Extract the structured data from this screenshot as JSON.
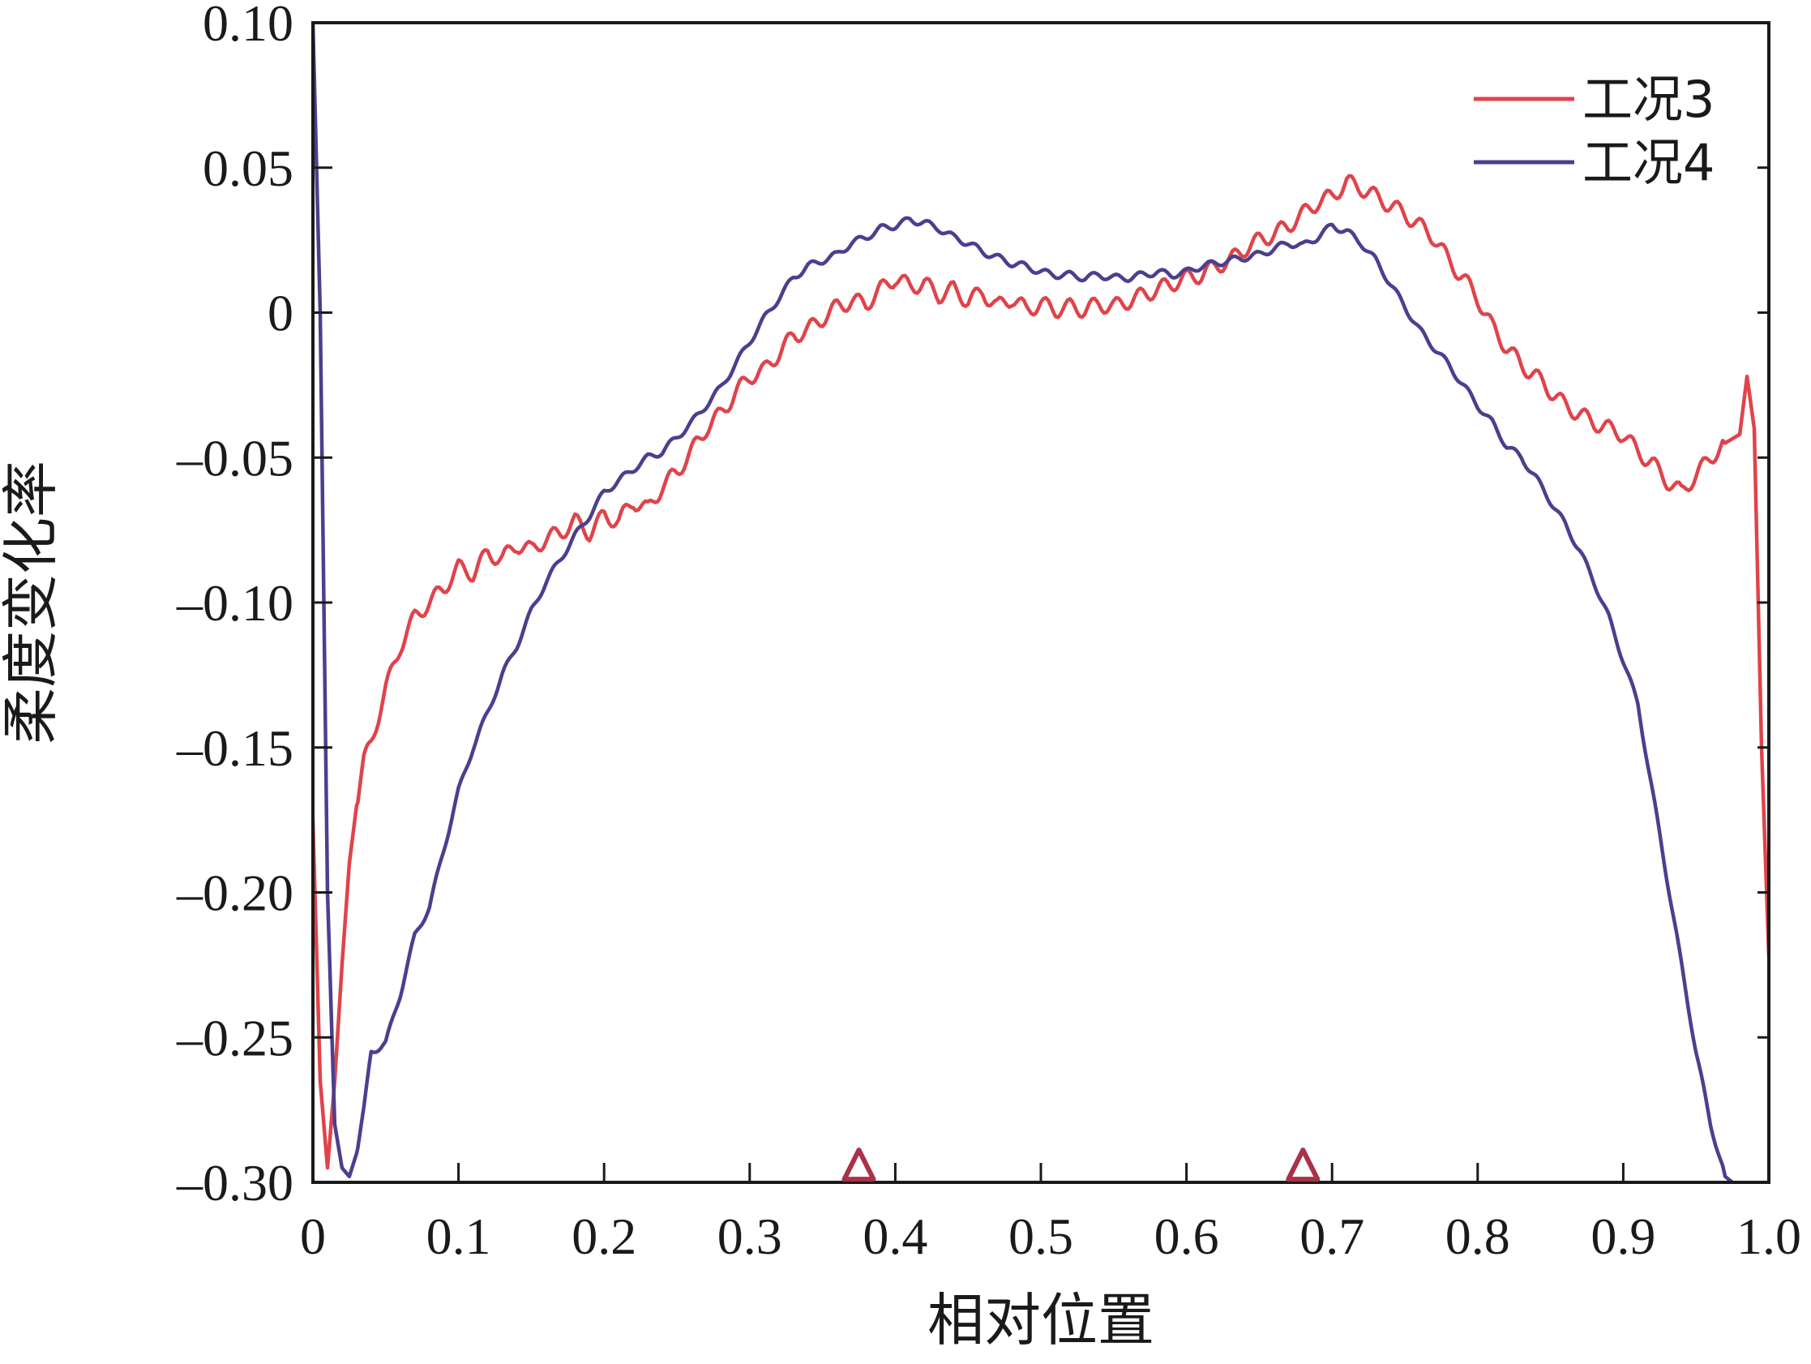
{
  "chart_data": {
    "type": "line",
    "xlabel": "相对位置",
    "ylabel": "柔度变化率",
    "xlim": [
      0,
      1.0
    ],
    "ylim": [
      -0.3,
      0.1
    ],
    "xticks": [
      0,
      0.1,
      0.2,
      0.3,
      0.4,
      0.5,
      0.6,
      0.7,
      0.8,
      0.9,
      1.0
    ],
    "xtick_labels": [
      "0",
      "0.1",
      "0.2",
      "0.3",
      "0.4",
      "0.5",
      "0.6",
      "0.7",
      "0.8",
      "0.9",
      "1.0"
    ],
    "yticks": [
      0.1,
      0.05,
      0,
      -0.05,
      -0.1,
      -0.15,
      -0.2,
      -0.25,
      -0.3
    ],
    "ytick_labels": [
      "0.10",
      "0.05",
      "0",
      "–0.05",
      "–0.10",
      "–0.15",
      "–0.20",
      "–0.25",
      "–0.30"
    ],
    "grid": false,
    "legend_position": "top-right",
    "markers": {
      "shape": "triangle",
      "color": "#a83248",
      "x": [
        0.375,
        0.68
      ],
      "y": -0.295
    },
    "series": [
      {
        "name": "工况3",
        "color": "#e0434a",
        "x": [
          0.0,
          0.005,
          0.01,
          0.015,
          0.02,
          0.025,
          0.03,
          0.035,
          0.04,
          0.05,
          0.06,
          0.07,
          0.08,
          0.09,
          0.1,
          0.11,
          0.12,
          0.13,
          0.14,
          0.15,
          0.16,
          0.17,
          0.18,
          0.19,
          0.2,
          0.21,
          0.22,
          0.23,
          0.24,
          0.25,
          0.26,
          0.27,
          0.28,
          0.29,
          0.3,
          0.31,
          0.32,
          0.33,
          0.34,
          0.35,
          0.36,
          0.37,
          0.38,
          0.39,
          0.4,
          0.41,
          0.42,
          0.43,
          0.44,
          0.45,
          0.46,
          0.47,
          0.48,
          0.49,
          0.5,
          0.51,
          0.52,
          0.53,
          0.54,
          0.55,
          0.56,
          0.57,
          0.58,
          0.59,
          0.6,
          0.61,
          0.62,
          0.63,
          0.64,
          0.65,
          0.66,
          0.67,
          0.68,
          0.69,
          0.7,
          0.71,
          0.72,
          0.73,
          0.74,
          0.75,
          0.76,
          0.77,
          0.78,
          0.79,
          0.8,
          0.81,
          0.82,
          0.83,
          0.84,
          0.85,
          0.86,
          0.87,
          0.88,
          0.89,
          0.9,
          0.91,
          0.92,
          0.93,
          0.94,
          0.95,
          0.96,
          0.97,
          0.98,
          0.985,
          0.99,
          0.995,
          1.0
        ],
        "values": [
          -0.175,
          -0.265,
          -0.295,
          -0.265,
          -0.225,
          -0.19,
          -0.17,
          -0.155,
          -0.148,
          -0.13,
          -0.115,
          -0.105,
          -0.1,
          -0.095,
          -0.088,
          -0.09,
          -0.083,
          -0.085,
          -0.08,
          -0.082,
          -0.078,
          -0.076,
          -0.072,
          -0.076,
          -0.07,
          -0.072,
          -0.065,
          -0.068,
          -0.06,
          -0.055,
          -0.048,
          -0.04,
          -0.035,
          -0.028,
          -0.022,
          -0.02,
          -0.014,
          -0.008,
          -0.006,
          -0.002,
          0.002,
          0.004,
          0.003,
          0.008,
          0.012,
          0.009,
          0.01,
          0.006,
          0.008,
          0.004,
          0.007,
          0.002,
          0.005,
          0.001,
          0.003,
          0.001,
          0.002,
          0.001,
          0.003,
          0.002,
          0.004,
          0.006,
          0.008,
          0.01,
          0.012,
          0.013,
          0.016,
          0.018,
          0.022,
          0.025,
          0.027,
          0.03,
          0.034,
          0.038,
          0.04,
          0.045,
          0.043,
          0.04,
          0.037,
          0.034,
          0.03,
          0.026,
          0.018,
          0.012,
          0.005,
          -0.005,
          -0.012,
          -0.018,
          -0.022,
          -0.027,
          -0.032,
          -0.035,
          -0.038,
          -0.04,
          -0.042,
          -0.048,
          -0.052,
          -0.058,
          -0.062,
          -0.056,
          -0.05,
          -0.045,
          -0.042,
          -0.022,
          -0.04,
          -0.15,
          -0.222
        ]
      },
      {
        "name": "工况4",
        "color": "#4b3f8e",
        "x": [
          0.0,
          0.005,
          0.01,
          0.015,
          0.02,
          0.025,
          0.03,
          0.035,
          0.04,
          0.05,
          0.06,
          0.07,
          0.08,
          0.09,
          0.1,
          0.11,
          0.12,
          0.13,
          0.14,
          0.15,
          0.16,
          0.17,
          0.18,
          0.19,
          0.2,
          0.21,
          0.22,
          0.23,
          0.24,
          0.25,
          0.26,
          0.27,
          0.28,
          0.29,
          0.3,
          0.31,
          0.32,
          0.33,
          0.34,
          0.35,
          0.36,
          0.37,
          0.38,
          0.39,
          0.4,
          0.41,
          0.42,
          0.43,
          0.44,
          0.45,
          0.46,
          0.47,
          0.48,
          0.49,
          0.5,
          0.51,
          0.52,
          0.53,
          0.54,
          0.55,
          0.56,
          0.57,
          0.58,
          0.59,
          0.6,
          0.61,
          0.62,
          0.63,
          0.64,
          0.65,
          0.66,
          0.67,
          0.68,
          0.69,
          0.7,
          0.71,
          0.72,
          0.73,
          0.74,
          0.75,
          0.76,
          0.77,
          0.78,
          0.79,
          0.8,
          0.81,
          0.82,
          0.83,
          0.84,
          0.85,
          0.86,
          0.87,
          0.88,
          0.89,
          0.9,
          0.91,
          0.92,
          0.93,
          0.94,
          0.95,
          0.96,
          0.97,
          0.975
        ],
        "values": [
          0.1,
          0.0,
          -0.2,
          -0.28,
          -0.295,
          -0.298,
          -0.29,
          -0.275,
          -0.255,
          -0.252,
          -0.235,
          -0.215,
          -0.205,
          -0.185,
          -0.165,
          -0.15,
          -0.138,
          -0.125,
          -0.115,
          -0.103,
          -0.093,
          -0.085,
          -0.077,
          -0.07,
          -0.062,
          -0.058,
          -0.054,
          -0.05,
          -0.048,
          -0.043,
          -0.038,
          -0.032,
          -0.026,
          -0.018,
          -0.01,
          -0.002,
          0.005,
          0.012,
          0.016,
          0.018,
          0.02,
          0.024,
          0.026,
          0.029,
          0.03,
          0.032,
          0.031,
          0.029,
          0.026,
          0.024,
          0.021,
          0.019,
          0.017,
          0.016,
          0.014,
          0.013,
          0.013,
          0.012,
          0.013,
          0.012,
          0.012,
          0.013,
          0.014,
          0.013,
          0.014,
          0.016,
          0.017,
          0.018,
          0.019,
          0.02,
          0.022,
          0.024,
          0.023,
          0.026,
          0.03,
          0.028,
          0.024,
          0.018,
          0.01,
          0.002,
          -0.006,
          -0.012,
          -0.018,
          -0.025,
          -0.032,
          -0.038,
          -0.046,
          -0.05,
          -0.057,
          -0.065,
          -0.073,
          -0.082,
          -0.093,
          -0.105,
          -0.12,
          -0.135,
          -0.165,
          -0.195,
          -0.225,
          -0.255,
          -0.28,
          -0.298,
          -0.3
        ]
      }
    ]
  }
}
